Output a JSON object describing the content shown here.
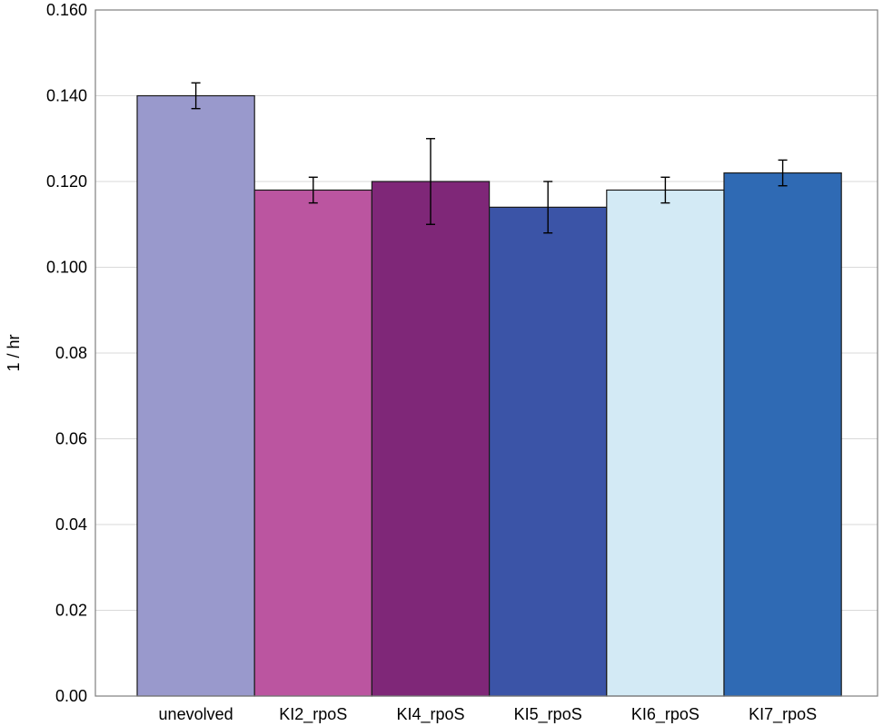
{
  "chart_data": {
    "type": "bar",
    "title": "",
    "xlabel": "",
    "ylabel": "1 / hr",
    "ylim": [
      0,
      0.16
    ],
    "yticks": [
      "0.00",
      "0.02",
      "0.04",
      "0.06",
      "0.08",
      "0.100",
      "0.120",
      "0.140",
      "0.160"
    ],
    "grid": true,
    "legend": "none",
    "categories": [
      "unevolved",
      "KI2_rpoS",
      "KI4_rpoS",
      "KI5_rpoS",
      "KI6_rpoS",
      "KI7_rpoS"
    ],
    "values": [
      0.14,
      0.118,
      0.12,
      0.114,
      0.118,
      0.122
    ],
    "errors": [
      0.003,
      0.003,
      0.01,
      0.006,
      0.003,
      0.003
    ],
    "colors": [
      "#9999cc",
      "#bb55a0",
      "#7f2778",
      "#3b54a7",
      "#d3eaf5",
      "#2f6ab4"
    ]
  }
}
